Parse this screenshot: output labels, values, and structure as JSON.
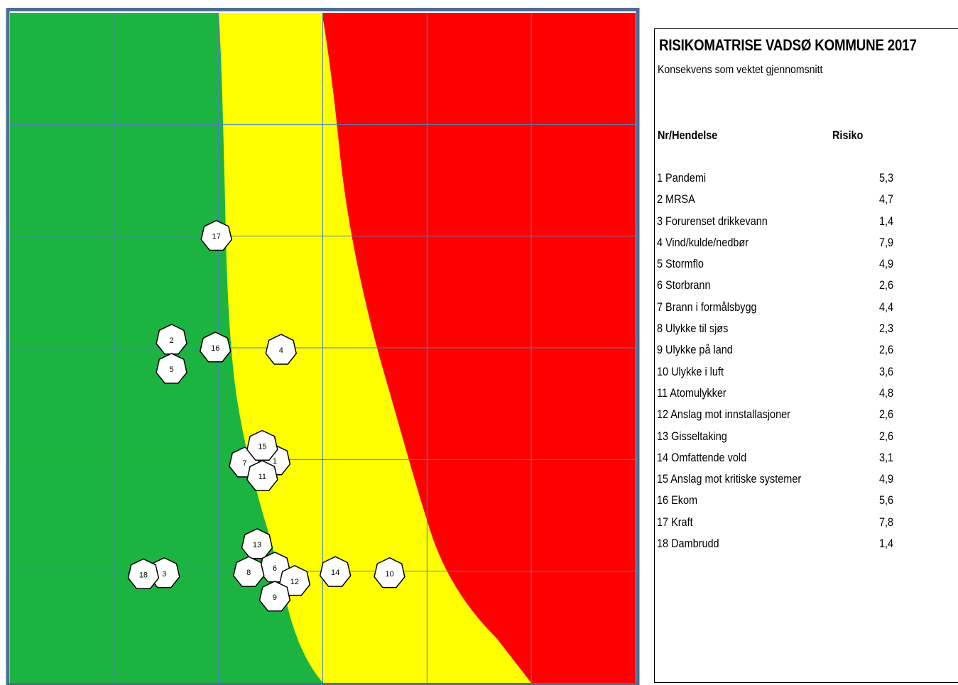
{
  "chart_data": {
    "type": "scatter",
    "title": "RISIKOMATRISE VADSØ KOMMUNE 2017",
    "subtitle": "Konsekvens som vektet gjennomsnitt",
    "xlim": [
      0,
      6
    ],
    "ylim": [
      0,
      6
    ],
    "grid": true,
    "zones": [
      {
        "name": "green",
        "color": "#1cb440"
      },
      {
        "name": "yellow",
        "color": "#ffff00"
      },
      {
        "name": "red",
        "color": "#ff0000"
      }
    ],
    "points": [
      {
        "label": "1",
        "x": 2.54,
        "y": 1.99
      },
      {
        "label": "2",
        "x": 1.55,
        "y": 3.07
      },
      {
        "label": "3",
        "x": 1.48,
        "y": 0.98
      },
      {
        "label": "4",
        "x": 2.6,
        "y": 2.98
      },
      {
        "label": "5",
        "x": 1.55,
        "y": 2.81
      },
      {
        "label": "6",
        "x": 2.54,
        "y": 1.03
      },
      {
        "label": "7",
        "x": 2.25,
        "y": 1.97
      },
      {
        "label": "8",
        "x": 2.29,
        "y": 0.99
      },
      {
        "label": "9",
        "x": 2.54,
        "y": 0.77
      },
      {
        "label": "10",
        "x": 3.64,
        "y": 0.98
      },
      {
        "label": "11",
        "x": 2.42,
        "y": 1.85
      },
      {
        "label": "12",
        "x": 2.73,
        "y": 0.91
      },
      {
        "label": "13",
        "x": 2.37,
        "y": 1.24
      },
      {
        "label": "14",
        "x": 3.12,
        "y": 0.99
      },
      {
        "label": "15",
        "x": 2.42,
        "y": 2.12
      },
      {
        "label": "16",
        "x": 1.97,
        "y": 3.0
      },
      {
        "label": "17",
        "x": 1.98,
        "y": 4.0
      },
      {
        "label": "18",
        "x": 1.28,
        "y": 0.97
      }
    ],
    "colors": {
      "marker_fill": "#ffffff",
      "marker_stroke": "#000000",
      "grid": "#4f81bd",
      "frame": "#4f6d94"
    }
  },
  "legend": {
    "title": "RISIKOMATRISE VADSØ KOMMUNE 2017",
    "subtitle": "Konsekvens som vektet gjennomsnitt",
    "header_event": "Nr/Hendelse",
    "header_risk": "Risiko",
    "events": [
      {
        "name": "1 Pandemi",
        "risk": "5,3"
      },
      {
        "name": "2 MRSA",
        "risk": "4,7"
      },
      {
        "name": "3 Forurenset drikkevann",
        "risk": "1,4"
      },
      {
        "name": "4 Vind/kulde/nedbør",
        "risk": "7,9"
      },
      {
        "name": "5 Stormflo",
        "risk": "4,9"
      },
      {
        "name": "6 Storbrann",
        "risk": "2,6"
      },
      {
        "name": "7 Brann i formålsbygg",
        "risk": "4,4"
      },
      {
        "name": "8 Ulykke til sjøs",
        "risk": "2,3"
      },
      {
        "name": "9 Ulykke på land",
        "risk": "2,6"
      },
      {
        "name": "10 Ulykke i luft",
        "risk": "3,6"
      },
      {
        "name": "11 Atomulykker",
        "risk": "4,8"
      },
      {
        "name": "12 Anslag mot innstallasjoner",
        "risk": "2,6"
      },
      {
        "name": "13 Gisseltaking",
        "risk": "2,6"
      },
      {
        "name": "14 Omfattende vold",
        "risk": "3,1"
      },
      {
        "name": "15 Anslag mot kritiske systemer",
        "risk": "4,9"
      },
      {
        "name": "16 Ekom",
        "risk": "5,6"
      },
      {
        "name": "17 Kraft",
        "risk": "7,8"
      },
      {
        "name": "18 Dambrudd",
        "risk": "1,4"
      }
    ]
  }
}
